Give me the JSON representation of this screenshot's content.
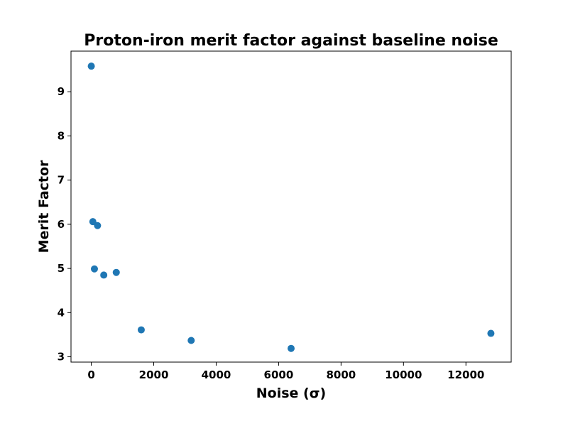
{
  "chart_data": {
    "type": "scatter",
    "title": "Proton-iron merit factor against baseline noise",
    "xlabel": "Noise (σ)",
    "ylabel": "Merit Factor",
    "xlim": [
      -650,
      13450
    ],
    "ylim": [
      2.88,
      9.92
    ],
    "xticks": [
      0,
      2000,
      4000,
      6000,
      8000,
      10000,
      12000
    ],
    "yticks": [
      3,
      4,
      5,
      6,
      7,
      8,
      9
    ],
    "grid": false,
    "color": "#1f77b4",
    "series": [
      {
        "x": [
          0,
          50,
          100,
          200,
          400,
          800,
          1600,
          3200,
          6400,
          12800
        ],
        "y": [
          9.58,
          6.06,
          4.99,
          5.97,
          4.85,
          4.91,
          3.61,
          3.37,
          3.19,
          3.53
        ]
      }
    ]
  }
}
